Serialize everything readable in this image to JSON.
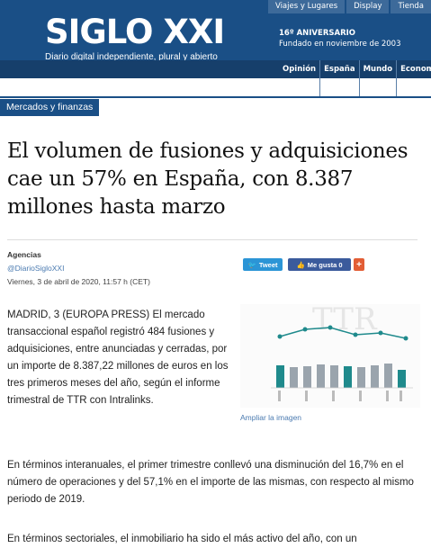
{
  "top_nav": [
    "Viajes y Lugares",
    "Display",
    "Tienda"
  ],
  "brand": {
    "logo": "SIGLO XXI",
    "tagline": "Diario digital independiente, plural y abierto",
    "anniversary_line1": "16º ANIVERSARIO",
    "anniversary_line2": "Fundado en noviembre de 2003"
  },
  "main_nav": [
    "Opinión ▾",
    "España",
    "Mundo",
    "Econom"
  ],
  "section": "Mercados y finanzas",
  "headline": "El volumen de fusiones y adquisiciones cae un 57% en España, con 8.387 millones hasta marzo",
  "byline": {
    "author": "Agencias",
    "handle": "@DiarioSigloXXI",
    "date": "Viernes, 3 de abril de 2020, 11:57 h (CET)"
  },
  "share": {
    "tweet": "Tweet",
    "like": "Me gusta 0",
    "plus": "+"
  },
  "paragraphs": [
    "MADRID, 3 (EUROPA PRESS) El mercado transaccional español registró 484 fusiones y adquisiciones, entre anunciadas y cerradas, por un importe de 8.387,22 millones de euros en los tres primeros meses del año, según el informe trimestral de TTR con Intralinks.",
    "En términos interanuales, el primer trimestre conllevó una disminución del 16,7% en el número de operaciones y del 57,1% en el importe de las mismas, con respecto al mismo periodo de 2019.",
    "En términos sectoriales, el inmobiliario ha sido el más activo del año, con un"
  ],
  "figure": {
    "caption": "Ampliar la imagen",
    "colors": {
      "bar": "#9aa4ad",
      "bar_highlight": "#1f8a8c",
      "line": "#1f8a8c"
    }
  },
  "colors": {
    "brand": "#1a4f86",
    "link": "#4a7ab0"
  }
}
